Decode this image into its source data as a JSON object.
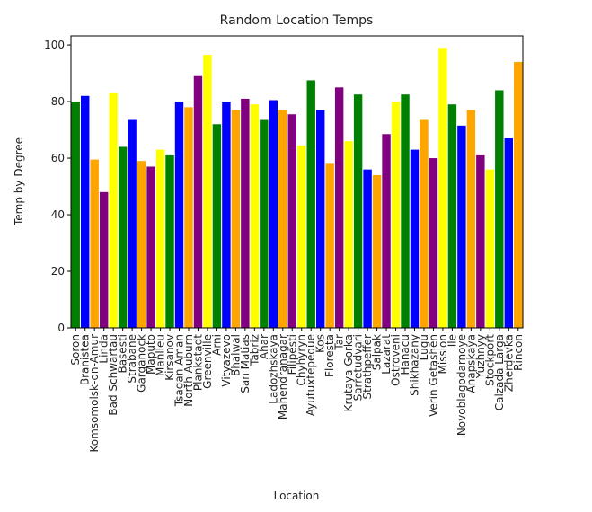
{
  "chart_data": {
    "type": "bar",
    "title": "Random Location Temps",
    "x_label": "Location",
    "y_label": "Temp by Degree",
    "categories": [
      "Soron",
      "Branistea",
      "Komsomolsk-on-Amur",
      "Linda",
      "Bad Schwartau",
      "Basesti",
      "Strabane",
      "Garganock",
      "Maputo",
      "Manlleu",
      "Kirsanov",
      "Tsagan Aman",
      "North Auburn",
      "Plankstadt",
      "Greenville",
      "Arni",
      "Vityazevo",
      "Bhalwal",
      "San Matias",
      "Tabriz",
      "Ahar",
      "Ladozhskaya",
      "Mahendranagar",
      "Filipesti",
      "Chyhyryn",
      "Ayutuxtepeque",
      "Kos",
      "Floresta",
      "Tar",
      "Krutaya Gorka",
      "Sarretudvari",
      "Strathpeffer",
      "Salpak",
      "Lazarat",
      "Ostroveni",
      "Hanacu",
      "Shikhazany",
      "Lugu",
      "Verin Getashen",
      "Mission",
      "Ile",
      "Novoblagodarnoye",
      "Anapskaya",
      "Yuzhnyy",
      "Stockport",
      "Calzada Larga",
      "Zherdevka",
      "Rincon"
    ],
    "values": [
      80,
      82,
      59.5,
      48,
      83,
      64,
      73.5,
      59,
      57,
      63,
      61,
      80,
      78,
      89,
      96.5,
      72,
      80,
      77,
      81,
      79,
      73.5,
      80.5,
      77,
      75.5,
      64.5,
      87.5,
      77,
      58,
      85,
      66,
      82.5,
      56,
      54,
      68.5,
      80,
      82.5,
      63,
      73.5,
      60,
      99,
      79,
      71.5,
      77,
      61,
      56,
      84,
      67,
      94
    ],
    "colors": [
      "green",
      "blue",
      "orange",
      "purple",
      "yellow"
    ],
    "ylim": [
      0,
      103.2
    ],
    "yticks": [
      0,
      20,
      40,
      60,
      80,
      100
    ]
  }
}
